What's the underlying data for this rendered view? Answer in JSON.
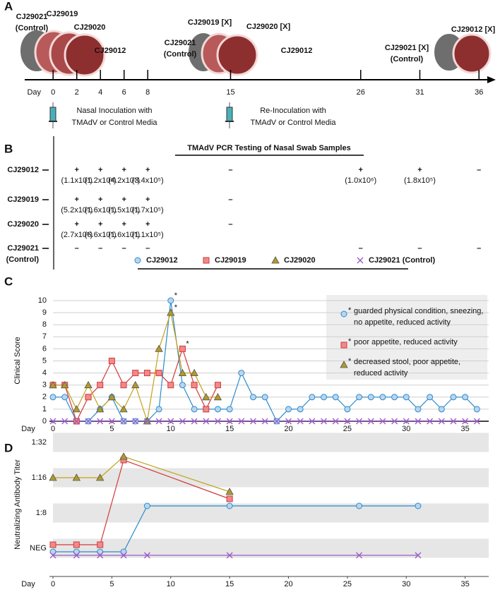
{
  "panel_a": {
    "label": "A",
    "axis_label": "Day",
    "xlim": [
      -2.4,
      37
    ],
    "ticks": [
      0,
      2,
      4,
      6,
      8,
      15,
      26,
      31,
      36
    ],
    "animals": [
      [
        "CJ29021",
        "(Control)"
      ],
      [
        "CJ29019"
      ],
      [
        "CJ29020"
      ],
      [
        "CJ29012"
      ],
      [
        "CJ29021",
        "(Control)"
      ],
      [
        "CJ29019 [X]"
      ],
      [
        "CJ29020 [X]"
      ],
      [
        "CJ29012"
      ],
      [
        "CJ29021 [X]",
        "(Control)"
      ],
      [
        "CJ29012 [X]"
      ]
    ],
    "events": [
      [
        "Nasal Inoculation with",
        "TMAdV or Control Media"
      ],
      [
        "Re-Inoculation with",
        "TMAdV or Control Media"
      ]
    ]
  },
  "panel_b": {
    "label": "B",
    "title": "TMAdV PCR Testing of Nasal Swab Samples",
    "rows": [
      {
        "name": [
          "CJ29012"
        ],
        "cells": [
          [
            "+",
            "(1.1x10⁷)"
          ],
          [
            "+",
            "(1.2x10⁶)"
          ],
          [
            "+",
            "(4.2x10⁵)"
          ],
          [
            "+",
            "(3.4x10⁵)"
          ],
          [
            "–"
          ],
          [
            "+",
            "(1.0x10⁶)"
          ],
          [
            "+",
            "(1.8x10⁵)"
          ],
          [
            "–"
          ]
        ]
      },
      {
        "name": [
          "CJ29019"
        ],
        "cells": [
          [
            "+",
            "(5.2x10⁵)"
          ],
          [
            "+",
            "(1.6x10⁵)"
          ],
          [
            "+",
            "(1.5x10⁵)"
          ],
          [
            "+",
            "(1.7x10⁵)"
          ],
          [
            "–"
          ],
          null,
          null,
          null
        ]
      },
      {
        "name": [
          "CJ29020"
        ],
        "cells": [
          [
            "+",
            "(2.7x10⁵)"
          ],
          [
            "+",
            "(6.6x10⁵)"
          ],
          [
            "+",
            "(1.6x10⁵)"
          ],
          [
            "+",
            "(1.1x10⁵)"
          ],
          [
            "–"
          ],
          null,
          null,
          null
        ]
      },
      {
        "name": [
          "CJ29021",
          "(Control)"
        ],
        "cells": [
          [
            "–"
          ],
          [
            "–"
          ],
          [
            "–"
          ],
          [
            "–"
          ],
          null,
          [
            "–"
          ],
          [
            "–"
          ],
          [
            "–"
          ]
        ]
      }
    ]
  },
  "chart_data": [
    {
      "type": "line",
      "panel": "C",
      "x_label": "Day",
      "y_label": "Clinical Score",
      "xlim": [
        0,
        37
      ],
      "xticks": [
        0,
        5,
        10,
        15,
        20,
        25,
        30,
        35
      ],
      "ylim": [
        0,
        10
      ],
      "yticks": [
        0,
        1,
        2,
        3,
        4,
        5,
        6,
        7,
        8,
        9,
        10
      ],
      "grid": true,
      "legend": "top",
      "x": [
        0,
        1,
        2,
        3,
        4,
        5,
        6,
        7,
        8,
        9,
        10,
        11,
        12,
        13,
        14,
        15,
        16,
        17,
        18,
        19,
        20,
        21,
        22,
        23,
        24,
        25,
        26,
        27,
        28,
        29,
        30,
        31,
        32,
        33,
        34,
        35,
        36
      ],
      "series": [
        {
          "name": "CJ29012",
          "color": "#2a8ccc",
          "fill": "#bcd4ec",
          "marker": "circle",
          "values": [
            2,
            2,
            0,
            0,
            1,
            2,
            0,
            0,
            0,
            1,
            10,
            3,
            1,
            1,
            1,
            1,
            4,
            2,
            2,
            0,
            1,
            1,
            2,
            2,
            2,
            1,
            2,
            2,
            2,
            2,
            2,
            1,
            2,
            1,
            2,
            2,
            1
          ],
          "note": {
            "symbol": "*",
            "lines": [
              "guarded physical condition, sneezing,",
              "no appetite, reduced activity"
            ]
          }
        },
        {
          "name": "CJ29019",
          "color": "#d23a3a",
          "fill": "#f08a8a",
          "marker": "square",
          "values": [
            3,
            3,
            0,
            2,
            3,
            5,
            3,
            4,
            4,
            4,
            3,
            6,
            3,
            1,
            3,
            null,
            null,
            null,
            null,
            null,
            null,
            null,
            null,
            null,
            null,
            null,
            null,
            null,
            null,
            null,
            null,
            null,
            null,
            null,
            null,
            null,
            null
          ],
          "note": {
            "symbol": "*",
            "lines": [
              "poor appetite, reduced activity"
            ]
          }
        },
        {
          "name": "CJ29020",
          "color": "#c4a21a",
          "fill": "#b09a2a",
          "marker": "triangle",
          "values": [
            3,
            3,
            1,
            3,
            1,
            2,
            1,
            3,
            0,
            6,
            9,
            4,
            4,
            2,
            2,
            null,
            null,
            null,
            null,
            null,
            null,
            null,
            null,
            null,
            null,
            null,
            null,
            null,
            null,
            null,
            null,
            null,
            null,
            null,
            null,
            null,
            null
          ],
          "note": {
            "symbol": "*",
            "lines": [
              "decreased stool, poor appetite,",
              "reduced activity"
            ]
          }
        },
        {
          "name": "CJ29021 (Control)",
          "color": "#9a5cc8",
          "marker": "x",
          "values": [
            0,
            0,
            0,
            0,
            0,
            0,
            0,
            0,
            0,
            0,
            0,
            0,
            0,
            0,
            0,
            0,
            0,
            0,
            0,
            0,
            0,
            0,
            0,
            0,
            0,
            0,
            0,
            0,
            0,
            0,
            0,
            0,
            0,
            0,
            0,
            0,
            0
          ]
        }
      ]
    },
    {
      "type": "line",
      "panel": "D",
      "x_label": "Day",
      "y_label": "Neutralizing Antibody Titer",
      "xlim": [
        0,
        37
      ],
      "xticks": [
        0,
        5,
        10,
        15,
        20,
        25,
        30,
        35
      ],
      "ylim": [
        -0.8,
        3.3
      ],
      "yticks": [
        {
          "value": 0,
          "label": "NEG"
        },
        {
          "value": 1,
          "label": "1:8"
        },
        {
          "value": 2,
          "label": "1:16"
        },
        {
          "value": 3,
          "label": "1:32"
        }
      ],
      "bands": true,
      "series": [
        {
          "color": "#2a8ccc",
          "fill": "#bcd4ec",
          "marker": "circle",
          "x": [
            0,
            2,
            4,
            6,
            8,
            15,
            26,
            31
          ],
          "values": [
            -0.1,
            -0.1,
            -0.1,
            -0.1,
            1.2,
            1.2,
            1.2,
            1.2
          ]
        },
        {
          "color": "#d23a3a",
          "fill": "#f08a8a",
          "marker": "square",
          "x": [
            0,
            2,
            4,
            6,
            15
          ],
          "values": [
            0.1,
            0.1,
            0.1,
            2.5,
            1.4
          ]
        },
        {
          "color": "#c4a21a",
          "fill": "#b09a2a",
          "marker": "triangle",
          "x": [
            0,
            2,
            4,
            6,
            15
          ],
          "values": [
            2,
            2,
            2,
            2.6,
            1.6
          ]
        },
        {
          "color": "#9a5cc8",
          "marker": "x",
          "x": [
            0,
            2,
            4,
            6,
            8,
            15,
            26,
            31
          ],
          "values": [
            -0.2,
            -0.2,
            -0.2,
            -0.2,
            -0.2,
            -0.2,
            -0.2,
            -0.2
          ]
        }
      ]
    }
  ]
}
